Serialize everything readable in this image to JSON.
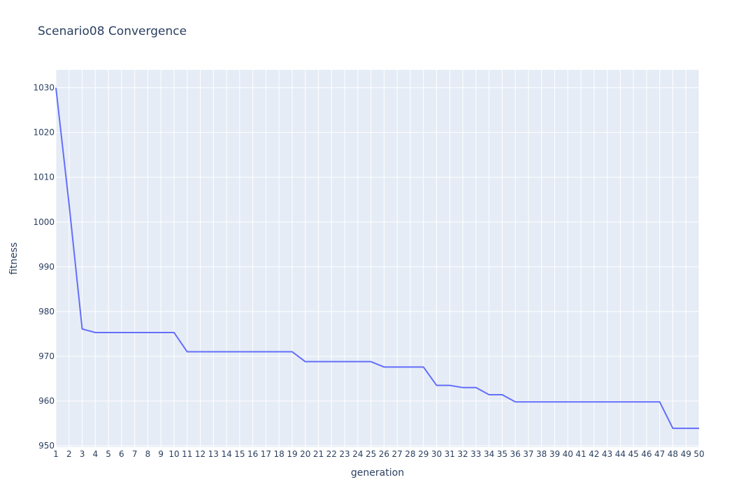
{
  "chart_data": {
    "type": "line",
    "title": "Scenario08 Convergence",
    "xlabel": "generation",
    "ylabel": "fitness",
    "x": [
      1,
      2,
      3,
      4,
      5,
      6,
      7,
      8,
      9,
      10,
      11,
      12,
      13,
      14,
      15,
      16,
      17,
      18,
      19,
      20,
      21,
      22,
      23,
      24,
      25,
      26,
      27,
      28,
      29,
      30,
      31,
      32,
      33,
      34,
      35,
      36,
      37,
      38,
      39,
      40,
      41,
      42,
      43,
      44,
      45,
      46,
      47,
      48,
      49,
      50
    ],
    "y": [
      1030,
      1004,
      976.1,
      975.3,
      975.3,
      975.3,
      975.3,
      975.3,
      975.3,
      975.3,
      971.0,
      971.0,
      971.0,
      971.0,
      971.0,
      971.0,
      971.0,
      971.0,
      971.0,
      968.8,
      968.8,
      968.8,
      968.8,
      968.8,
      968.8,
      967.6,
      967.6,
      967.6,
      967.6,
      963.5,
      963.5,
      963.0,
      963.0,
      961.4,
      961.4,
      959.8,
      959.8,
      959.8,
      959.8,
      959.8,
      959.8,
      959.8,
      959.8,
      959.8,
      959.8,
      959.8,
      959.8,
      953.9,
      953.9,
      953.9
    ],
    "xlim": [
      1,
      50
    ],
    "ylim": [
      949.7,
      1034
    ],
    "yticks": [
      950,
      960,
      970,
      980,
      990,
      1000,
      1010,
      1020,
      1030
    ],
    "xticks": [
      "1",
      "2",
      "3",
      "4",
      "5",
      "6",
      "7",
      "8",
      "9",
      "10",
      "11",
      "12",
      "13",
      "14",
      "15",
      "16",
      "17",
      "18",
      "19",
      "20",
      "21",
      "22",
      "23",
      "24",
      "25",
      "26",
      "27",
      "28",
      "29",
      "30",
      "31",
      "32",
      "33",
      "34",
      "35",
      "36",
      "37",
      "38",
      "39",
      "40",
      "41",
      "42",
      "43",
      "44",
      "45",
      "46",
      "47",
      "48",
      "49",
      "50"
    ],
    "grid": true,
    "colors": {
      "line": "#636efa",
      "plot_bg": "#e5ecf6",
      "grid": "#ffffff",
      "text": "#2a3f5f"
    }
  }
}
